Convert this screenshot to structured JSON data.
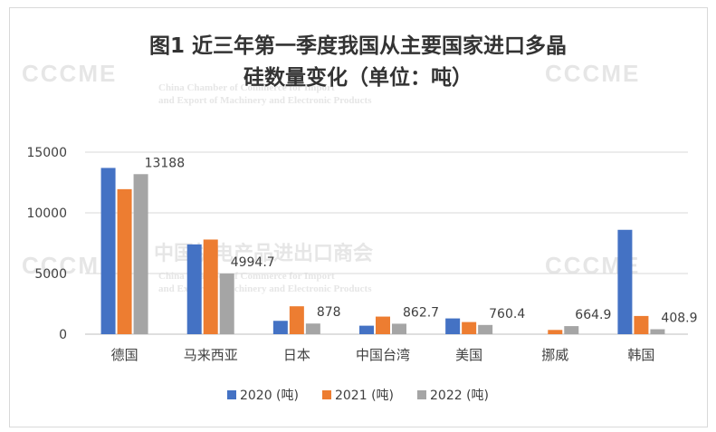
{
  "watermark": {
    "logo": "CCCME",
    "org_cn": "中国机电产品进出口商会",
    "org_en_line1": "China Chamber of Commerce for Import",
    "org_en_line2": "and Export of Machinery and Electronic Products"
  },
  "chart_data": {
    "type": "bar",
    "title_line1": "图1 近三年第一季度我国从主要国家进口多晶",
    "title_line2": "硅数量变化（单位：吨）",
    "categories": [
      "德国",
      "马来西亚",
      "日本",
      "中国台湾",
      "美国",
      "挪威",
      "韩国"
    ],
    "series": [
      {
        "name": "2020 (吨)",
        "color": "#4472C4",
        "values": [
          13700,
          7400,
          1100,
          700,
          1300,
          0,
          8600
        ]
      },
      {
        "name": "2021 (吨)",
        "color": "#ED7D31",
        "values": [
          11950,
          7800,
          2300,
          1450,
          1000,
          350,
          1500
        ]
      },
      {
        "name": "2022 (吨)",
        "color": "#A5A5A5",
        "values": [
          13188,
          4994.7,
          878,
          862.7,
          760.4,
          664.9,
          408.9
        ]
      }
    ],
    "data_labels": [
      "13188",
      "4994.7",
      "878",
      "862.7",
      "760.4",
      "664.9",
      "408.9"
    ],
    "y_ticks": [
      "0",
      "5000",
      "10000",
      "15000"
    ],
    "ylim": [
      0,
      15000
    ],
    "grid": true,
    "legend_position": "bottom"
  }
}
